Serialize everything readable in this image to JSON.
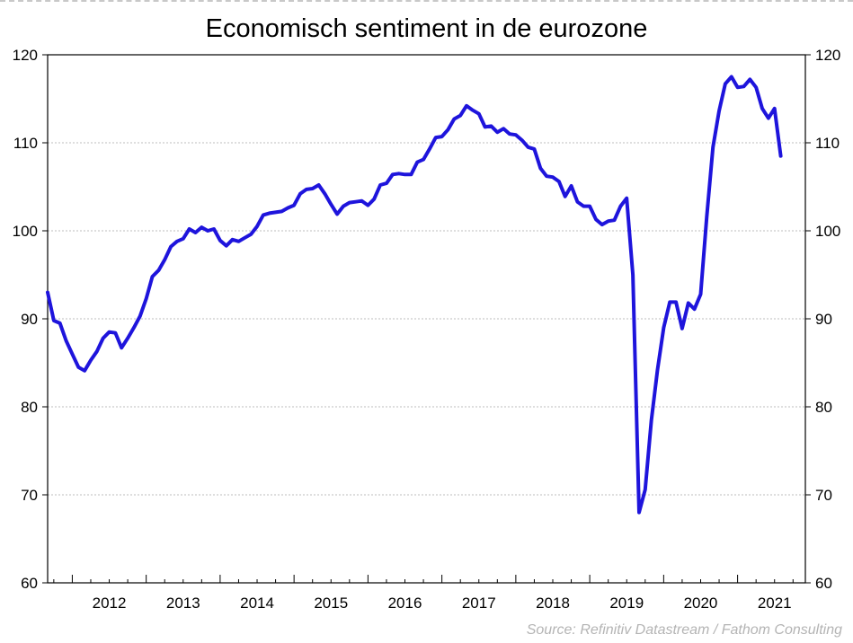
{
  "chart_data": {
    "type": "line",
    "title": "Economisch sentiment in de eurozone",
    "xlabel": "",
    "ylabel": "",
    "ylim": [
      60,
      120
    ],
    "yticks": [
      60,
      70,
      80,
      90,
      100,
      110,
      120
    ],
    "xtick_labels": [
      "2012",
      "2013",
      "2014",
      "2015",
      "2016",
      "2017",
      "2018",
      "2019",
      "2020",
      "2021"
    ],
    "x_start": "2011-09",
    "x_end": "2021-12",
    "grid": true,
    "line_color": "#1e14dc",
    "series": [
      {
        "values": [
          93,
          89.8,
          89.5,
          87.5,
          86,
          84.5,
          84.1,
          85.3,
          86.3,
          87.8,
          88.5,
          88.4,
          86.7,
          87.8,
          89,
          90.3,
          92.3,
          94.8,
          95.5,
          96.7,
          98.2,
          98.8,
          99.1,
          100.2,
          99.8,
          100.4,
          100,
          100.2,
          98.9,
          98.3,
          99,
          98.8,
          99.2,
          99.6,
          100.5,
          101.8,
          102,
          102.1,
          102.2,
          102.6,
          102.9,
          104.2,
          104.7,
          104.8,
          105.2,
          104.2,
          103,
          101.9,
          102.8,
          103.2,
          103.3,
          103.4,
          102.9,
          103.6,
          105.2,
          105.4,
          106.4,
          106.5,
          106.4,
          106.4,
          107.8,
          108.1,
          109.3,
          110.6,
          110.7,
          111.5,
          112.7,
          113.1,
          114.2,
          113.7,
          113.3,
          111.8,
          111.9,
          111.2,
          111.6,
          111,
          110.9,
          110.3,
          109.5,
          109.3,
          107.1,
          106.2,
          106.1,
          105.6,
          103.9,
          105.1,
          103.3,
          102.8,
          102.8,
          101.3,
          100.7,
          101.1,
          101.2,
          102.8,
          103.7,
          95,
          68,
          70.6,
          78.5,
          84.2,
          89,
          91.9,
          91.9,
          88.9,
          91.8,
          91.1,
          92.8,
          101.6,
          109.5,
          113.6,
          116.7,
          117.5,
          116.3,
          116.4,
          117.2,
          116.3,
          113.9,
          112.8,
          113.9,
          108.5
        ]
      }
    ],
    "source": "Source: Refinitiv Datastream / Fathom Consulting"
  }
}
